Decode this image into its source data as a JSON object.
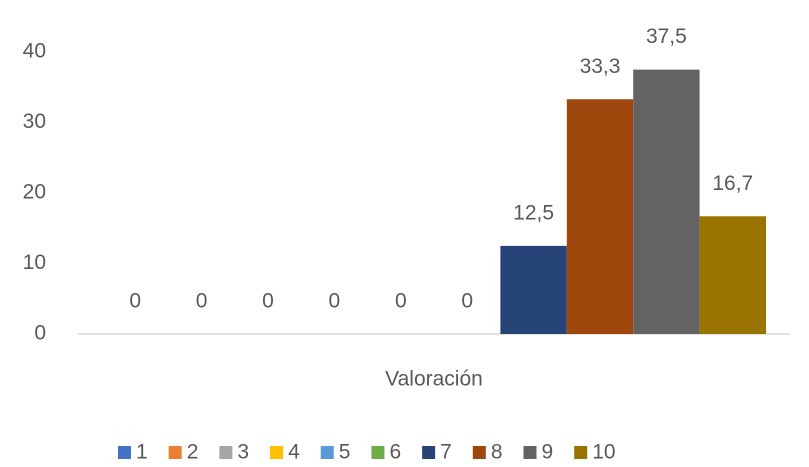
{
  "chart_data": {
    "type": "bar",
    "categories": [
      "Valoración"
    ],
    "series": [
      {
        "name": "1",
        "color": "#4472c4",
        "values": [
          0
        ]
      },
      {
        "name": "2",
        "color": "#ed7d31",
        "values": [
          0
        ]
      },
      {
        "name": "3",
        "color": "#a5a5a5",
        "values": [
          0
        ]
      },
      {
        "name": "4",
        "color": "#ffc000",
        "values": [
          0
        ]
      },
      {
        "name": "5",
        "color": "#5b9bd5",
        "values": [
          0
        ]
      },
      {
        "name": "6",
        "color": "#70ad47",
        "values": [
          0
        ]
      },
      {
        "name": "7",
        "color": "#264478",
        "values": [
          12.5
        ],
        "value_labels": [
          "12,5"
        ]
      },
      {
        "name": "8",
        "color": "#9e480e",
        "values": [
          33.3
        ],
        "value_labels": [
          "33,3"
        ]
      },
      {
        "name": "9",
        "color": "#636363",
        "values": [
          37.5
        ],
        "value_labels": [
          "37,5"
        ]
      },
      {
        "name": "10",
        "color": "#997300",
        "values": [
          16.7
        ],
        "value_labels": [
          "16,7"
        ]
      }
    ],
    "ylim": [
      0,
      40
    ],
    "yticks": [
      0,
      10,
      20,
      30,
      40
    ],
    "grid": false,
    "legend": "bottom"
  }
}
